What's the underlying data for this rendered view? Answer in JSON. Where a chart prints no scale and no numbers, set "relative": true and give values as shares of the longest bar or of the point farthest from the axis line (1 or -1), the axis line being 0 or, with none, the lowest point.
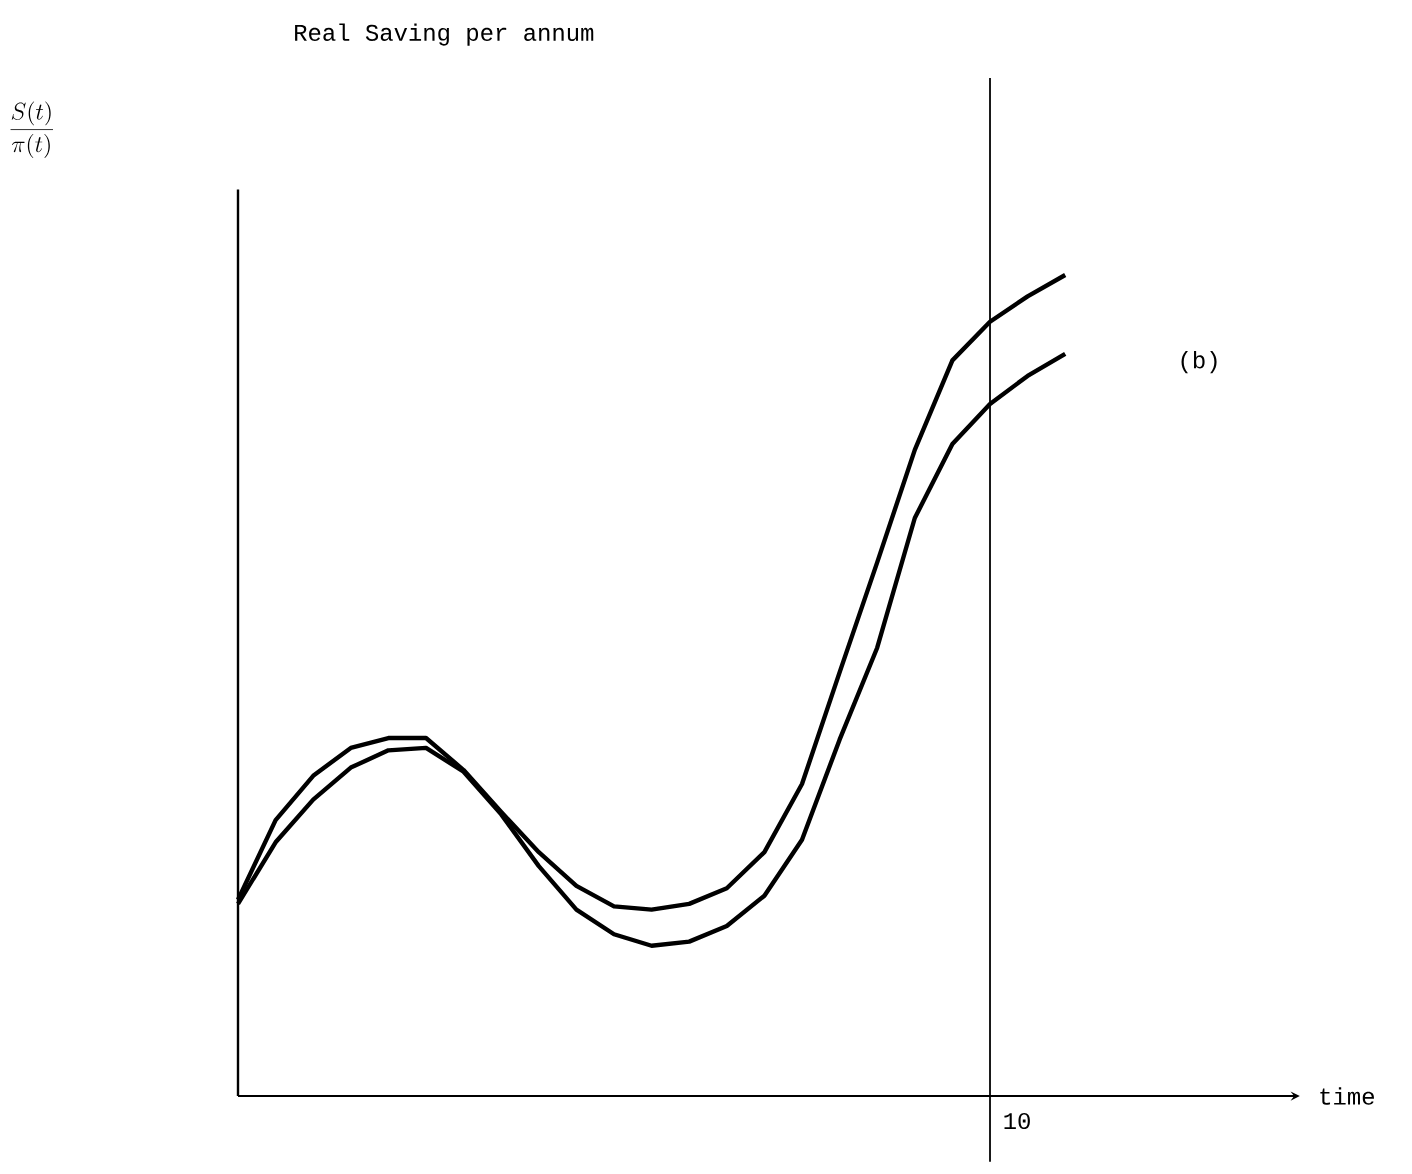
{
  "chart_data": {
    "type": "line",
    "relative": true,
    "categories": [
      null,
      null,
      null,
      null,
      null,
      null,
      null,
      null,
      null,
      null,
      null,
      null,
      null,
      null,
      null,
      null,
      null,
      null,
      null,
      null,
      null,
      null,
      null
    ],
    "line_style": "solid",
    "marker": "none",
    "annotations": [
      "\\frac{S(t)}{\\pi(t)}",
      "(b)",
      "Real Saving per annum",
      "time",
      "10"
    ],
    "series": [
      {
        "color": "#000000",
        "values": [
          0.239,
          0.336,
          0.39,
          0.424,
          0.436,
          0.436,
          0.397,
          0.346,
          0.297,
          0.256,
          0.231,
          0.227,
          0.234,
          0.253,
          0.297,
          0.38,
          0.516,
          0.65,
          0.787,
          0.896,
          0.943,
          0.974,
          1.0
        ]
      },
      {
        "color": "#000000",
        "values": [
          0.234,
          0.309,
          0.361,
          0.4,
          0.421,
          0.424,
          0.395,
          0.343,
          0.28,
          0.227,
          0.197,
          0.183,
          0.188,
          0.207,
          0.244,
          0.312,
          0.434,
          0.546,
          0.704,
          0.794,
          0.843,
          0.877,
          0.904
        ]
      }
    ]
  }
}
